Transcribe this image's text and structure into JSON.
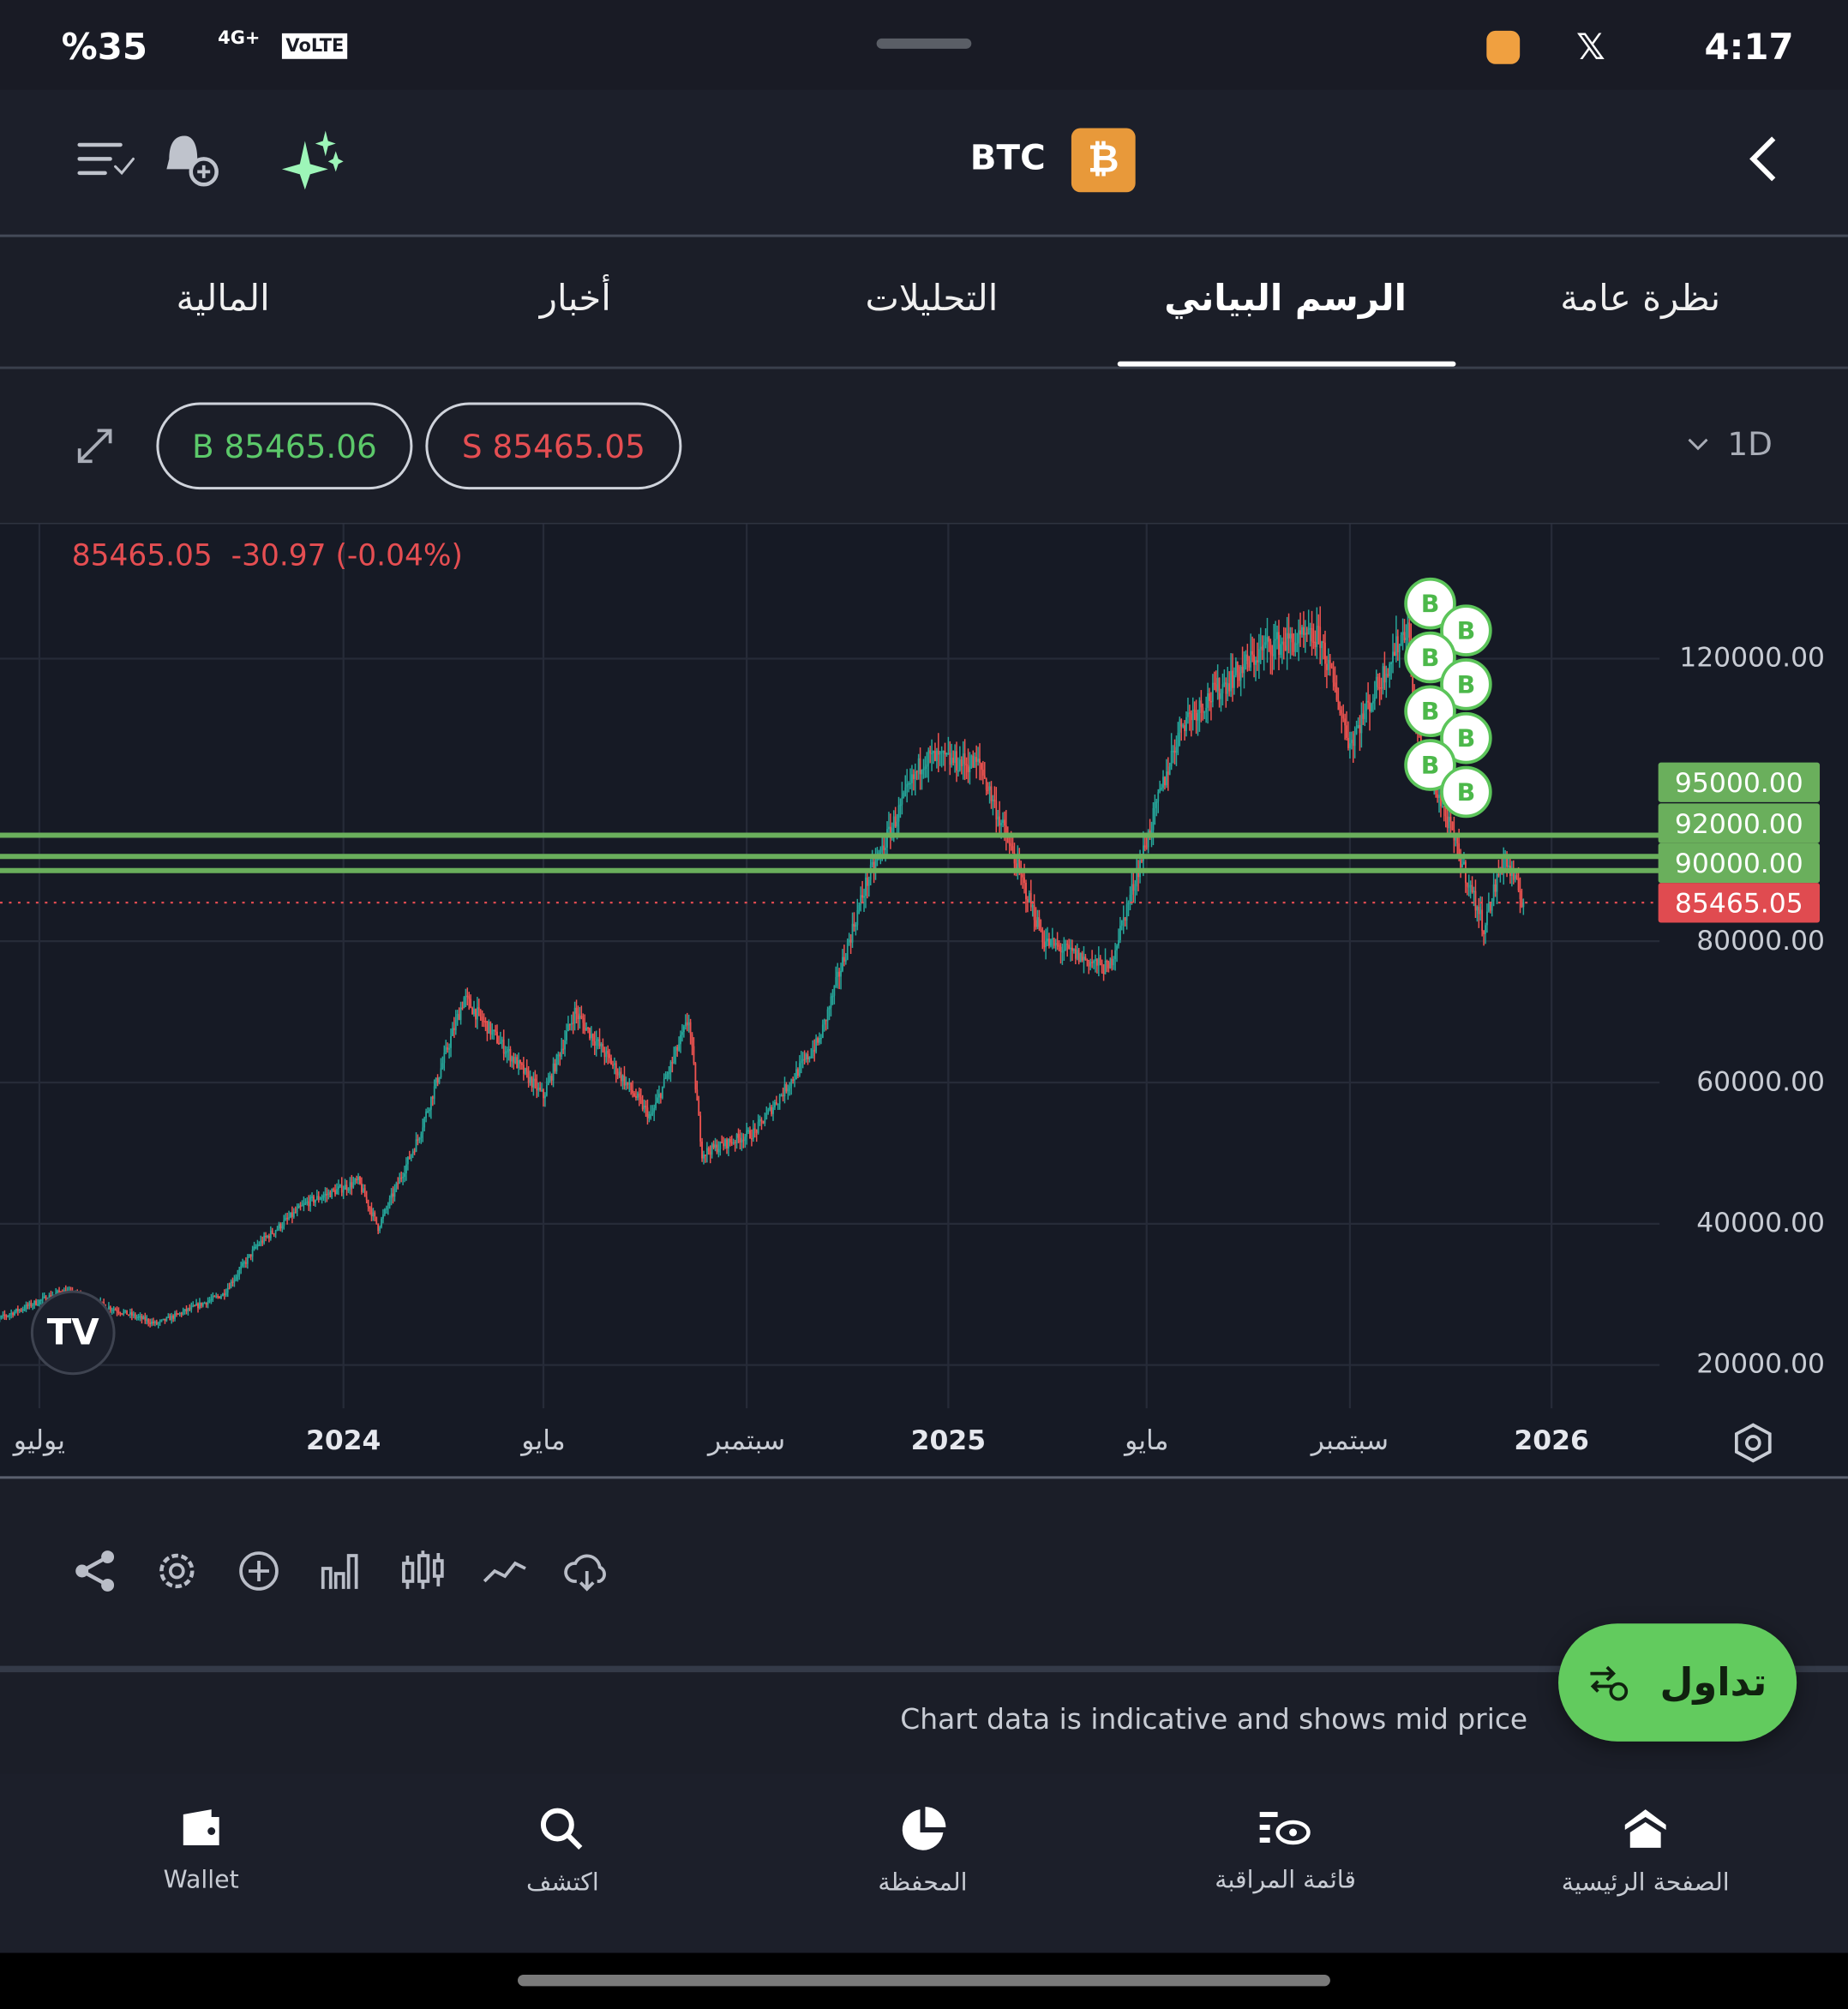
{
  "status_bar": {
    "battery": "%35",
    "network": "4G+",
    "volte": "VoLTE",
    "time": "4:17"
  },
  "header": {
    "symbol": "BTC",
    "coin_icon": "bitcoin-icon",
    "back_icon": "chevron-left-icon"
  },
  "tabs": [
    {
      "label": "نظرة عامة"
    },
    {
      "label": "الرسم البياني",
      "active": true
    },
    {
      "label": "التحليلات"
    },
    {
      "label": "أخبار"
    },
    {
      "label": "المالية"
    }
  ],
  "toolbar": {
    "buy_price": "B 85465.06",
    "sell_price": "S 85465.05",
    "interval": "1D"
  },
  "chart_data": {
    "type": "candlestick",
    "quote": {
      "price": "85465.05",
      "change": "-30.97",
      "change_pct": "(-0.04%)"
    },
    "y_ticks": [
      "120000.00",
      "80000.00",
      "60000.00",
      "40000.00",
      "20000.00"
    ],
    "y_tick_values": [
      120000,
      80000,
      60000,
      40000,
      20000
    ],
    "x_ticks": [
      {
        "label": "يوليو",
        "date": "2023-07-01"
      },
      {
        "label": "2024",
        "date": "2024-01-01"
      },
      {
        "label": "مايو",
        "date": "2024-05-01"
      },
      {
        "label": "سبتمبر",
        "date": "2024-09-01"
      },
      {
        "label": "2025",
        "date": "2025-01-01"
      },
      {
        "label": "مايو",
        "date": "2025-05-01"
      },
      {
        "label": "سبتمبر",
        "date": "2025-09-01"
      },
      {
        "label": "2026",
        "date": "2026-01-01"
      }
    ],
    "price_path": [
      [
        "2023-06-01",
        26000
      ],
      [
        "2023-07-15",
        30500
      ],
      [
        "2023-09-10",
        25800
      ],
      [
        "2023-10-20",
        30000
      ],
      [
        "2023-11-10",
        37000
      ],
      [
        "2023-12-10",
        43000
      ],
      [
        "2024-01-10",
        46000
      ],
      [
        "2024-01-22",
        39500
      ],
      [
        "2024-02-15",
        52000
      ],
      [
        "2024-03-14",
        72000
      ],
      [
        "2024-05-01",
        58000
      ],
      [
        "2024-05-20",
        70000
      ],
      [
        "2024-07-05",
        55000
      ],
      [
        "2024-07-28",
        69000
      ],
      [
        "2024-08-05",
        50000
      ],
      [
        "2024-09-06",
        53000
      ],
      [
        "2024-10-15",
        66000
      ],
      [
        "2024-11-12",
        88000
      ],
      [
        "2024-12-17",
        106000
      ],
      [
        "2025-01-20",
        105000
      ],
      [
        "2025-02-28",
        80000
      ],
      [
        "2025-04-08",
        76000
      ],
      [
        "2025-05-22",
        111000
      ],
      [
        "2025-07-14",
        122000
      ],
      [
        "2025-08-14",
        123000
      ],
      [
        "2025-09-01",
        108000
      ],
      [
        "2025-10-06",
        125000
      ],
      [
        "2025-10-11",
        110000
      ],
      [
        "2025-11-21",
        82000
      ],
      [
        "2025-12-03",
        92000
      ],
      [
        "2025-12-15",
        85465
      ]
    ],
    "horizontal_lines": [
      {
        "value": 95000,
        "label": "95000.00"
      },
      {
        "value": 92000,
        "label": "92000.00"
      },
      {
        "value": 90000,
        "label": "90000.00"
      }
    ],
    "last_price": {
      "value": 85465.05,
      "label": "85465.05"
    },
    "buy_markers": {
      "label": "B",
      "dates": [
        "2025-10-06",
        "2025-10-08",
        "2025-10-13",
        "2025-10-20",
        "2025-10-26",
        "2025-11-01",
        "2025-11-05",
        "2025-11-10"
      ]
    },
    "colors": {
      "up": "#26a69a",
      "down": "#ef5350",
      "levels": "#6aaf5c",
      "last": "#e04b50"
    },
    "grid": true
  },
  "chart_tools": [
    "share-icon",
    "settings-icon",
    "add-icon",
    "bar-chart-icon",
    "candles-icon",
    "line-icon",
    "cloud-icon"
  ],
  "trade_button": {
    "label": "تداول"
  },
  "disclaimer": "Chart data is indicative and shows mid price",
  "bottom_nav": [
    {
      "label": "Wallet",
      "icon": "wallet-icon"
    },
    {
      "label": "اكتشف",
      "icon": "search-icon"
    },
    {
      "label": "المحفظة",
      "icon": "pie-chart-icon"
    },
    {
      "label": "قائمة المراقبة",
      "icon": "watchlist-icon"
    },
    {
      "label": "الصفحة الرئيسية",
      "icon": "home-icon"
    }
  ]
}
